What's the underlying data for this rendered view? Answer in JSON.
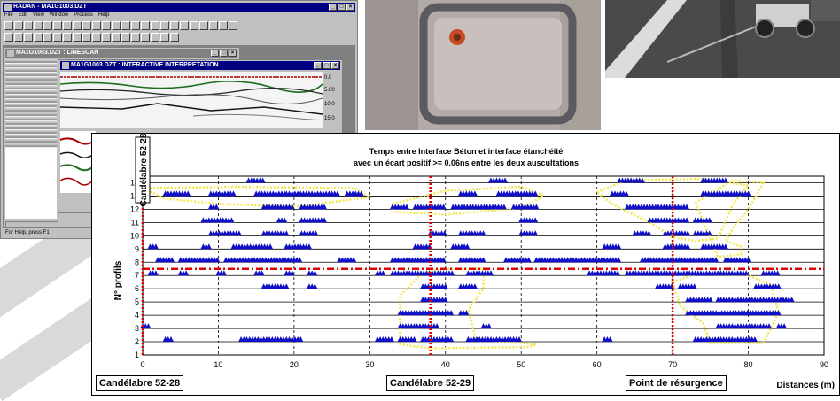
{
  "radan": {
    "title": "RADAN - MA1G1003.DZT",
    "menu": [
      "File",
      "Edit",
      "View",
      "Window",
      "Process",
      "Help"
    ],
    "linescan_title": "MA1G1003.DZT : LINESCAN",
    "interp_title": "MA1G1003.DZT : INTERACTIVE INTERPRETATION",
    "depth_ticks": [
      "0.0",
      "5.00",
      "10.0",
      "15.0"
    ],
    "status": "For Help, press F1"
  },
  "chart_data": {
    "type": "scatter",
    "title_line1": "Temps entre Interface Béton et interface étanchéité",
    "title_line2": "avec un écart positif >= 0.06ns entre les deux auscultations",
    "ylabel": "N° profils",
    "xlabel": "Distances (m)",
    "xlim": [
      0,
      90
    ],
    "ylim": [
      1,
      14
    ],
    "x_ticks": [
      "0",
      "10",
      "20",
      "30",
      "40",
      "50",
      "60",
      "70",
      "80",
      "90"
    ],
    "y_ticks": [
      "1",
      "2",
      "3",
      "4",
      "5",
      "6",
      "7",
      "8",
      "9",
      "10",
      "11",
      "12",
      "13",
      "14"
    ],
    "grid": "horizontal and vertical dashed",
    "marker_color": "#1010c8",
    "reference_lines": [
      {
        "label": "Candélabre 52-28",
        "x": 0,
        "color": "#e00000"
      },
      {
        "label": "Candélabre 52-29",
        "x": 38,
        "color": "#e00000"
      },
      {
        "label": "Point de résurgence",
        "x": 70,
        "color": "#e00000"
      }
    ],
    "horizontal_line": {
      "y": 7.5,
      "color": "#e00000"
    },
    "vertical_label": "Candélabre 52-28",
    "series": [
      {
        "segments": [
          {
            "y": 14,
            "x0": 14,
            "x1": 16
          },
          {
            "y": 14,
            "x0": 46,
            "x1": 48
          },
          {
            "y": 14,
            "x0": 63,
            "x1": 66
          },
          {
            "y": 14,
            "x0": 74,
            "x1": 77
          },
          {
            "y": 13,
            "x0": 3,
            "x1": 6
          },
          {
            "y": 13,
            "x0": 9,
            "x1": 12
          },
          {
            "y": 13,
            "x0": 15,
            "x1": 19
          },
          {
            "y": 13,
            "x0": 19,
            "x1": 26
          },
          {
            "y": 13,
            "x0": 27,
            "x1": 29
          },
          {
            "y": 13,
            "x0": 42,
            "x1": 44
          },
          {
            "y": 13,
            "x0": 47,
            "x1": 52
          },
          {
            "y": 13,
            "x0": 62,
            "x1": 64
          },
          {
            "y": 13,
            "x0": 74,
            "x1": 80
          },
          {
            "y": 12,
            "x0": 9,
            "x1": 10
          },
          {
            "y": 12,
            "x0": 16,
            "x1": 20
          },
          {
            "y": 12,
            "x0": 21,
            "x1": 24
          },
          {
            "y": 12,
            "x0": 33,
            "x1": 35
          },
          {
            "y": 12,
            "x0": 36,
            "x1": 40
          },
          {
            "y": 12,
            "x0": 41,
            "x1": 48
          },
          {
            "y": 12,
            "x0": 49,
            "x1": 52
          },
          {
            "y": 12,
            "x0": 64,
            "x1": 72
          },
          {
            "y": 11,
            "x0": 8,
            "x1": 12
          },
          {
            "y": 11,
            "x0": 18,
            "x1": 19
          },
          {
            "y": 11,
            "x0": 21,
            "x1": 24
          },
          {
            "y": 11,
            "x0": 50,
            "x1": 52
          },
          {
            "y": 11,
            "x0": 67,
            "x1": 72
          },
          {
            "y": 11,
            "x0": 73,
            "x1": 75
          },
          {
            "y": 10,
            "x0": 9,
            "x1": 13
          },
          {
            "y": 10,
            "x0": 16,
            "x1": 19
          },
          {
            "y": 10,
            "x0": 21,
            "x1": 23
          },
          {
            "y": 10,
            "x0": 38,
            "x1": 40
          },
          {
            "y": 10,
            "x0": 42,
            "x1": 45
          },
          {
            "y": 10,
            "x0": 50,
            "x1": 52
          },
          {
            "y": 10,
            "x0": 65,
            "x1": 67
          },
          {
            "y": 10,
            "x0": 69,
            "x1": 72
          },
          {
            "y": 10,
            "x0": 73,
            "x1": 75
          },
          {
            "y": 9,
            "x0": 1,
            "x1": 2
          },
          {
            "y": 9,
            "x0": 8,
            "x1": 9
          },
          {
            "y": 9,
            "x0": 12,
            "x1": 17
          },
          {
            "y": 9,
            "x0": 19,
            "x1": 22
          },
          {
            "y": 9,
            "x0": 36,
            "x1": 38
          },
          {
            "y": 9,
            "x0": 41,
            "x1": 43
          },
          {
            "y": 9,
            "x0": 61,
            "x1": 63
          },
          {
            "y": 9,
            "x0": 69,
            "x1": 72
          },
          {
            "y": 9,
            "x0": 74,
            "x1": 77
          },
          {
            "y": 8,
            "x0": 2,
            "x1": 4
          },
          {
            "y": 8,
            "x0": 5,
            "x1": 10
          },
          {
            "y": 8,
            "x0": 11,
            "x1": 21
          },
          {
            "y": 8,
            "x0": 26,
            "x1": 28
          },
          {
            "y": 8,
            "x0": 33,
            "x1": 40
          },
          {
            "y": 8,
            "x0": 42,
            "x1": 45
          },
          {
            "y": 8,
            "x0": 48,
            "x1": 51
          },
          {
            "y": 8,
            "x0": 52,
            "x1": 63
          },
          {
            "y": 8,
            "x0": 66,
            "x1": 76
          },
          {
            "y": 8,
            "x0": 77,
            "x1": 80
          },
          {
            "y": 7,
            "x0": 1,
            "x1": 2
          },
          {
            "y": 7,
            "x0": 5,
            "x1": 6
          },
          {
            "y": 7,
            "x0": 10,
            "x1": 11
          },
          {
            "y": 7,
            "x0": 15,
            "x1": 16
          },
          {
            "y": 7,
            "x0": 19,
            "x1": 20
          },
          {
            "y": 7,
            "x0": 22,
            "x1": 23
          },
          {
            "y": 7,
            "x0": 31,
            "x1": 32
          },
          {
            "y": 7,
            "x0": 33,
            "x1": 41
          },
          {
            "y": 7,
            "x0": 43,
            "x1": 46
          },
          {
            "y": 7,
            "x0": 59,
            "x1": 63
          },
          {
            "y": 7,
            "x0": 64,
            "x1": 80
          },
          {
            "y": 7,
            "x0": 82,
            "x1": 84
          },
          {
            "y": 6,
            "x0": 16,
            "x1": 19
          },
          {
            "y": 6,
            "x0": 22,
            "x1": 23
          },
          {
            "y": 6,
            "x0": 37,
            "x1": 40
          },
          {
            "y": 6,
            "x0": 42,
            "x1": 44
          },
          {
            "y": 6,
            "x0": 68,
            "x1": 70
          },
          {
            "y": 6,
            "x0": 71,
            "x1": 73
          },
          {
            "y": 6,
            "x0": 81,
            "x1": 84
          },
          {
            "y": 5,
            "x0": 37,
            "x1": 40
          },
          {
            "y": 5,
            "x0": 72,
            "x1": 75
          },
          {
            "y": 5,
            "x0": 76,
            "x1": 86
          },
          {
            "y": 4,
            "x0": 34,
            "x1": 41
          },
          {
            "y": 4,
            "x0": 42,
            "x1": 43
          },
          {
            "y": 4,
            "x0": 72,
            "x1": 84
          },
          {
            "y": 3,
            "x0": 0,
            "x1": 1
          },
          {
            "y": 3,
            "x0": 34,
            "x1": 39
          },
          {
            "y": 3,
            "x0": 45,
            "x1": 46
          },
          {
            "y": 3,
            "x0": 76,
            "x1": 83
          },
          {
            "y": 3,
            "x0": 84,
            "x1": 85
          },
          {
            "y": 2,
            "x0": 3,
            "x1": 4
          },
          {
            "y": 2,
            "x0": 13,
            "x1": 21
          },
          {
            "y": 2,
            "x0": 31,
            "x1": 33
          },
          {
            "y": 2,
            "x0": 34,
            "x1": 36
          },
          {
            "y": 2,
            "x0": 37,
            "x1": 41
          },
          {
            "y": 2,
            "x0": 43,
            "x1": 50
          },
          {
            "y": 2,
            "x0": 61,
            "x1": 62
          },
          {
            "y": 2,
            "x0": 73,
            "x1": 81
          }
        ]
      }
    ],
    "highlight_zones_color": "#f0e84a"
  },
  "callouts": {
    "c1": "Candélabre 52-28",
    "c2": "Candélabre 52-29",
    "c3": "Point de résurgence"
  },
  "colors": {
    "window_chrome": "#c0c0c0",
    "title_active": "#000080",
    "title_inactive": "#808080"
  }
}
